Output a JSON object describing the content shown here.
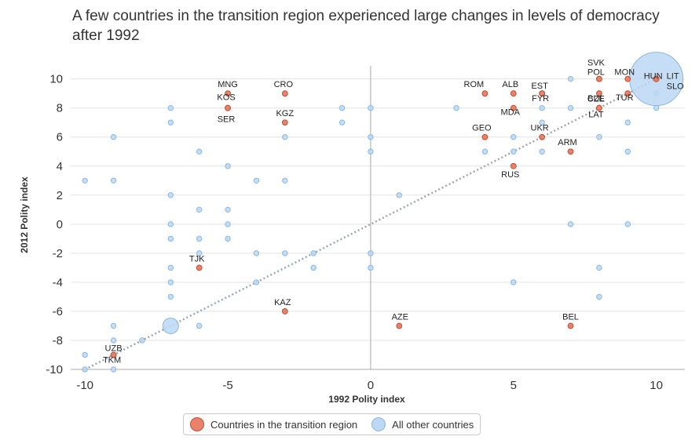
{
  "chart_data": {
    "type": "scatter",
    "title": "A few countries in the transition region experienced large changes in levels of democracy after 1992",
    "xlabel": "1992 Polity index",
    "ylabel": "2012 Polity index",
    "xlim": [
      -10.5,
      11
    ],
    "ylim": [
      -10,
      10.9
    ],
    "x_ticks": [
      -10,
      -5,
      0,
      5,
      10
    ],
    "y_ticks": [
      -10,
      -8,
      -6,
      -4,
      -2,
      0,
      2,
      4,
      6,
      8,
      10
    ],
    "grid": "horizontal",
    "reference_line": "y = x (dotted diagonal)",
    "legend_position": "bottom-center",
    "colors": {
      "transition_fill": "#e8826b",
      "transition_stroke": "#c24e35",
      "other_fill": "#bcd8f3",
      "other_stroke": "#8ab8e2",
      "axis": "#aaaaaa",
      "grid": "#e3e3e3",
      "diagonal": "#9aa8b4"
    },
    "series": [
      {
        "name": "Countries in the transition region",
        "points": [
          {
            "label": "MNG",
            "x": -5,
            "y": 9
          },
          {
            "label": "KOS",
            "x": -5,
            "y": 8
          },
          {
            "label": "SER",
            "x": -5,
            "y": 8
          },
          {
            "label": "CRO",
            "x": -3,
            "y": 9
          },
          {
            "label": "KGZ",
            "x": -3,
            "y": 7
          },
          {
            "label": "TJK",
            "x": -6,
            "y": -3
          },
          {
            "label": "KAZ",
            "x": -3,
            "y": -6
          },
          {
            "label": "UZB",
            "x": -9,
            "y": -9
          },
          {
            "label": "TKM",
            "x": -9,
            "y": -9
          },
          {
            "label": "AZE",
            "x": 1,
            "y": -7
          },
          {
            "label": "BEL",
            "x": 7,
            "y": -7
          },
          {
            "label": "ALB",
            "x": 5,
            "y": 9
          },
          {
            "label": "MDA",
            "x": 5,
            "y": 8
          },
          {
            "label": "ROM",
            "x": 4,
            "y": 9
          },
          {
            "label": "EST",
            "x": 6,
            "y": 9
          },
          {
            "label": "FYR",
            "x": 6,
            "y": 9
          },
          {
            "label": "GEO",
            "x": 4,
            "y": 6
          },
          {
            "label": "UKR",
            "x": 6,
            "y": 6
          },
          {
            "label": "RUS",
            "x": 5,
            "y": 4
          },
          {
            "label": "ARM",
            "x": 7,
            "y": 5
          },
          {
            "label": "SVK",
            "x": 8,
            "y": 10
          },
          {
            "label": "POL",
            "x": 8,
            "y": 10
          },
          {
            "label": "BUL",
            "x": 8,
            "y": 9
          },
          {
            "label": "CZE",
            "x": 8,
            "y": 8
          },
          {
            "label": "LAT",
            "x": 8,
            "y": 8
          },
          {
            "label": "MON",
            "x": 9,
            "y": 10
          },
          {
            "label": "TUR",
            "x": 9,
            "y": 9
          },
          {
            "label": "HUN",
            "x": 10,
            "y": 10
          },
          {
            "label": "LIT",
            "x": 10,
            "y": 10
          },
          {
            "label": "SLO",
            "x": 10,
            "y": 10
          }
        ]
      },
      {
        "name": "All other countries",
        "points": [
          {
            "x": -10,
            "y": 3
          },
          {
            "x": -10,
            "y": -9
          },
          {
            "x": -10,
            "y": -10
          },
          {
            "x": -9,
            "y": 6
          },
          {
            "x": -9,
            "y": 3
          },
          {
            "x": -9,
            "y": -7
          },
          {
            "x": -9,
            "y": -8
          },
          {
            "x": -9,
            "y": -10
          },
          {
            "x": -8,
            "y": -8
          },
          {
            "x": -7,
            "y": 8
          },
          {
            "x": -7,
            "y": 7
          },
          {
            "x": -7,
            "y": 2
          },
          {
            "x": -7,
            "y": 0
          },
          {
            "x": -7,
            "y": -1
          },
          {
            "x": -7,
            "y": -3
          },
          {
            "x": -7,
            "y": -4
          },
          {
            "x": -7,
            "y": -5
          },
          {
            "x": -7,
            "y": -7
          },
          {
            "x": -6,
            "y": 5
          },
          {
            "x": -6,
            "y": 1
          },
          {
            "x": -6,
            "y": -1
          },
          {
            "x": -6,
            "y": -2
          },
          {
            "x": -6,
            "y": -7
          },
          {
            "x": -5,
            "y": 4
          },
          {
            "x": -5,
            "y": 1
          },
          {
            "x": -5,
            "y": 0
          },
          {
            "x": -5,
            "y": -1
          },
          {
            "x": -4,
            "y": 3
          },
          {
            "x": -4,
            "y": -2
          },
          {
            "x": -4,
            "y": -4
          },
          {
            "x": -3,
            "y": 6
          },
          {
            "x": -3,
            "y": 3
          },
          {
            "x": -3,
            "y": -2
          },
          {
            "x": -2,
            "y": -2
          },
          {
            "x": -2,
            "y": -3
          },
          {
            "x": -1,
            "y": 8
          },
          {
            "x": -1,
            "y": 7
          },
          {
            "x": 0,
            "y": 8
          },
          {
            "x": 0,
            "y": 6
          },
          {
            "x": 0,
            "y": 5
          },
          {
            "x": 0,
            "y": -2
          },
          {
            "x": 0,
            "y": -3
          },
          {
            "x": 1,
            "y": 2
          },
          {
            "x": 3,
            "y": 8
          },
          {
            "x": 4,
            "y": 5
          },
          {
            "x": 5,
            "y": 6
          },
          {
            "x": 5,
            "y": 5
          },
          {
            "x": 5,
            "y": -4
          },
          {
            "x": 6,
            "y": 8
          },
          {
            "x": 6,
            "y": 7
          },
          {
            "x": 6,
            "y": 5
          },
          {
            "x": 7,
            "y": 10
          },
          {
            "x": 7,
            "y": 8
          },
          {
            "x": 7,
            "y": 0
          },
          {
            "x": 8,
            "y": 6
          },
          {
            "x": 8,
            "y": -3
          },
          {
            "x": 8,
            "y": -5
          },
          {
            "x": 9,
            "y": 7
          },
          {
            "x": 9,
            "y": 5
          },
          {
            "x": 9,
            "y": 0
          },
          {
            "x": 10,
            "y": 9
          },
          {
            "x": 10,
            "y": 8
          },
          {
            "x": 10,
            "y": 10
          }
        ]
      }
    ],
    "legend": [
      {
        "label": "Countries in the transition region",
        "color": "#e8826b"
      },
      {
        "label": "All other countries",
        "color": "#bcd8f3"
      }
    ]
  }
}
